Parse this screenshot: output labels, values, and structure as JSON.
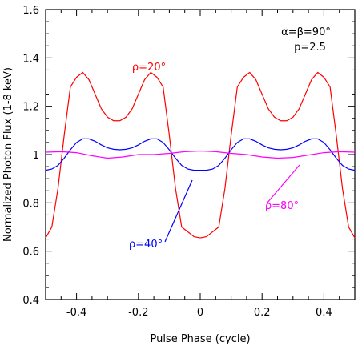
{
  "chart_data": {
    "type": "line",
    "xlabel": "Pulse Phase (cycle)",
    "ylabel": "Normalized Photon Flux (1-8 keV)",
    "xlim": [
      -0.5,
      0.5
    ],
    "ylim": [
      0.4,
      1.6
    ],
    "x_ticks": [
      "-0.4",
      "-0.2",
      "0",
      "0.2",
      "0.4"
    ],
    "y_ticks": [
      "0.4",
      "0.6",
      "0.8",
      "1",
      "1.2",
      "1.4",
      "1.6"
    ],
    "annotation_params": [
      "α=β=90°",
      "p=2.5"
    ],
    "grid": false,
    "series": [
      {
        "name": "ρ=20°",
        "color": "#ff0000",
        "x": [
          -0.5,
          -0.48,
          -0.46,
          -0.44,
          -0.42,
          -0.4,
          -0.38,
          -0.36,
          -0.34,
          -0.32,
          -0.3,
          -0.28,
          -0.26,
          -0.24,
          -0.22,
          -0.2,
          -0.18,
          -0.16,
          -0.14,
          -0.12,
          -0.1,
          -0.08,
          -0.06,
          -0.04,
          -0.02,
          0.0,
          0.02,
          0.04,
          0.06,
          0.08,
          0.1,
          0.12,
          0.14,
          0.16,
          0.18,
          0.2,
          0.22,
          0.24,
          0.26,
          0.28,
          0.3,
          0.32,
          0.34,
          0.36,
          0.38,
          0.4,
          0.42,
          0.44,
          0.46,
          0.48,
          0.5
        ],
        "y": [
          0.655,
          0.7,
          0.86,
          1.08,
          1.28,
          1.32,
          1.34,
          1.31,
          1.25,
          1.19,
          1.155,
          1.14,
          1.14,
          1.155,
          1.19,
          1.25,
          1.31,
          1.34,
          1.32,
          1.28,
          1.08,
          0.86,
          0.7,
          0.68,
          0.66,
          0.655,
          0.66,
          0.68,
          0.7,
          0.86,
          1.08,
          1.28,
          1.32,
          1.34,
          1.31,
          1.25,
          1.19,
          1.155,
          1.14,
          1.14,
          1.155,
          1.19,
          1.25,
          1.31,
          1.34,
          1.32,
          1.28,
          1.08,
          0.86,
          0.7,
          0.655
        ]
      },
      {
        "name": "ρ=40°",
        "color": "#0000ff",
        "x": [
          -0.5,
          -0.48,
          -0.46,
          -0.44,
          -0.42,
          -0.4,
          -0.38,
          -0.36,
          -0.34,
          -0.32,
          -0.3,
          -0.28,
          -0.26,
          -0.24,
          -0.22,
          -0.2,
          -0.18,
          -0.16,
          -0.14,
          -0.12,
          -0.1,
          -0.08,
          -0.06,
          -0.04,
          -0.02,
          0.0,
          0.02,
          0.04,
          0.06,
          0.08,
          0.1,
          0.12,
          0.14,
          0.16,
          0.18,
          0.2,
          0.22,
          0.24,
          0.26,
          0.28,
          0.3,
          0.32,
          0.34,
          0.36,
          0.38,
          0.4,
          0.42,
          0.44,
          0.46,
          0.48,
          0.5
        ],
        "y": [
          0.935,
          0.94,
          0.955,
          0.985,
          1.02,
          1.05,
          1.065,
          1.065,
          1.055,
          1.04,
          1.028,
          1.022,
          1.02,
          1.022,
          1.028,
          1.04,
          1.055,
          1.065,
          1.065,
          1.05,
          1.02,
          0.985,
          0.955,
          0.94,
          0.935,
          0.935,
          0.935,
          0.94,
          0.955,
          0.985,
          1.02,
          1.05,
          1.065,
          1.065,
          1.055,
          1.04,
          1.028,
          1.022,
          1.02,
          1.022,
          1.028,
          1.04,
          1.055,
          1.065,
          1.065,
          1.05,
          1.02,
          0.985,
          0.955,
          0.94,
          0.935
        ]
      },
      {
        "name": "ρ=80°",
        "color": "#ff00ff",
        "x": [
          -0.5,
          -0.45,
          -0.4,
          -0.35,
          -0.3,
          -0.25,
          -0.2,
          -0.15,
          -0.1,
          -0.05,
          0.0,
          0.05,
          0.1,
          0.15,
          0.2,
          0.25,
          0.3,
          0.35,
          0.4,
          0.45,
          0.5
        ],
        "y": [
          1.01,
          1.012,
          1.008,
          0.995,
          0.985,
          0.99,
          1.0,
          1.0,
          1.005,
          1.012,
          1.015,
          1.012,
          1.005,
          1.0,
          0.99,
          0.985,
          0.988,
          0.998,
          1.008,
          1.012,
          1.01
        ]
      }
    ],
    "labels": {
      "rho20": "ρ=20°",
      "rho40": "ρ=40°",
      "rho80": "ρ=80°"
    }
  }
}
